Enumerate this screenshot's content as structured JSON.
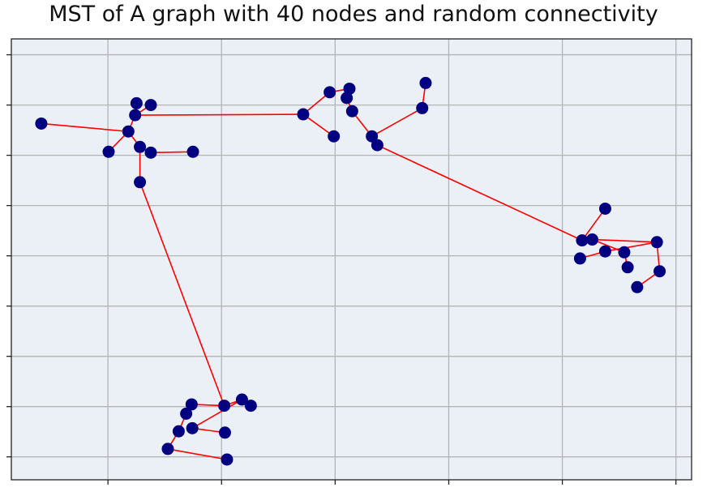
{
  "chart_data": {
    "type": "scatter",
    "title": "MST of A graph with 40 nodes and random connectivity",
    "xlabel": "",
    "ylabel": "",
    "xlim": [
      0,
      1
    ],
    "ylim": [
      0,
      1
    ],
    "x_ticks": [
      0.142,
      0.309,
      0.476,
      0.643,
      0.81,
      0.977
    ],
    "y_ticks": [
      0.052,
      0.166,
      0.28,
      0.394,
      0.508,
      0.622,
      0.736,
      0.85,
      0.964
    ],
    "tick_labels_visible": false,
    "grid": true,
    "legend": "none",
    "colors": {
      "background": "#eaf0f6",
      "grid": "#b4b4b4",
      "node": "#000080",
      "edge": "#ff0000",
      "axes": "#222222"
    },
    "nodes": [
      {
        "x": 0.044,
        "y": 0.808
      },
      {
        "x": 0.184,
        "y": 0.854
      },
      {
        "x": 0.205,
        "y": 0.85
      },
      {
        "x": 0.182,
        "y": 0.827
      },
      {
        "x": 0.172,
        "y": 0.79
      },
      {
        "x": 0.143,
        "y": 0.744
      },
      {
        "x": 0.189,
        "y": 0.755
      },
      {
        "x": 0.205,
        "y": 0.742
      },
      {
        "x": 0.267,
        "y": 0.744
      },
      {
        "x": 0.189,
        "y": 0.675
      },
      {
        "x": 0.429,
        "y": 0.829
      },
      {
        "x": 0.468,
        "y": 0.879
      },
      {
        "x": 0.497,
        "y": 0.887
      },
      {
        "x": 0.493,
        "y": 0.866
      },
      {
        "x": 0.501,
        "y": 0.836
      },
      {
        "x": 0.474,
        "y": 0.779
      },
      {
        "x": 0.53,
        "y": 0.779
      },
      {
        "x": 0.538,
        "y": 0.759
      },
      {
        "x": 0.609,
        "y": 0.9
      },
      {
        "x": 0.604,
        "y": 0.843
      },
      {
        "x": 0.873,
        "y": 0.615
      },
      {
        "x": 0.839,
        "y": 0.543
      },
      {
        "x": 0.854,
        "y": 0.545
      },
      {
        "x": 0.949,
        "y": 0.539
      },
      {
        "x": 0.873,
        "y": 0.518
      },
      {
        "x": 0.901,
        "y": 0.516
      },
      {
        "x": 0.836,
        "y": 0.502
      },
      {
        "x": 0.906,
        "y": 0.482
      },
      {
        "x": 0.953,
        "y": 0.473
      },
      {
        "x": 0.92,
        "y": 0.437
      },
      {
        "x": 0.265,
        "y": 0.171
      },
      {
        "x": 0.313,
        "y": 0.168
      },
      {
        "x": 0.339,
        "y": 0.182
      },
      {
        "x": 0.352,
        "y": 0.168
      },
      {
        "x": 0.257,
        "y": 0.15
      },
      {
        "x": 0.266,
        "y": 0.117
      },
      {
        "x": 0.246,
        "y": 0.11
      },
      {
        "x": 0.314,
        "y": 0.107
      },
      {
        "x": 0.23,
        "y": 0.07
      },
      {
        "x": 0.317,
        "y": 0.046
      }
    ],
    "edges": [
      [
        0,
        4
      ],
      [
        4,
        3
      ],
      [
        3,
        1
      ],
      [
        3,
        2
      ],
      [
        3,
        10
      ],
      [
        4,
        5
      ],
      [
        4,
        6
      ],
      [
        6,
        7
      ],
      [
        7,
        8
      ],
      [
        6,
        9
      ],
      [
        9,
        31
      ],
      [
        10,
        11
      ],
      [
        11,
        12
      ],
      [
        12,
        13
      ],
      [
        13,
        14
      ],
      [
        10,
        15
      ],
      [
        14,
        16
      ],
      [
        16,
        17
      ],
      [
        16,
        19
      ],
      [
        19,
        18
      ],
      [
        17,
        21
      ],
      [
        21,
        20
      ],
      [
        21,
        22
      ],
      [
        22,
        23
      ],
      [
        23,
        28
      ],
      [
        28,
        29
      ],
      [
        23,
        24
      ],
      [
        24,
        26
      ],
      [
        22,
        25
      ],
      [
        25,
        27
      ],
      [
        31,
        30
      ],
      [
        31,
        32
      ],
      [
        32,
        33
      ],
      [
        32,
        35
      ],
      [
        30,
        34
      ],
      [
        34,
        36
      ],
      [
        36,
        38
      ],
      [
        38,
        39
      ],
      [
        35,
        37
      ]
    ]
  }
}
